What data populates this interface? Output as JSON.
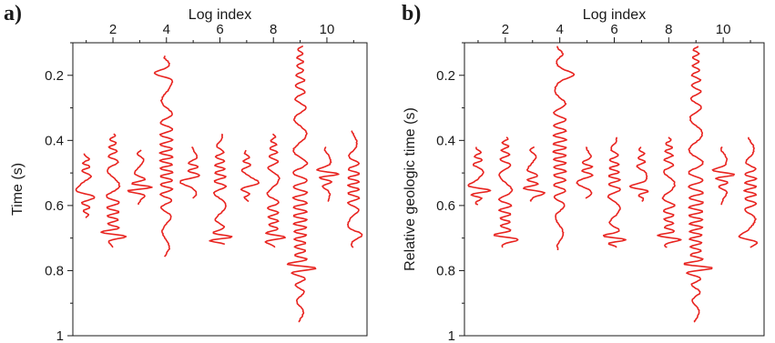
{
  "panels": [
    {
      "letter": "a)",
      "chart_data": {
        "type": "line",
        "xlabel": "Log index",
        "ylabel": "Time (s)",
        "xlim": [
          0.5,
          11.5
        ],
        "ylim": [
          0.1,
          1.0
        ],
        "y_inverted": true,
        "x_ticks": [
          2,
          4,
          6,
          8,
          10
        ],
        "x_minor_ticks": [
          1,
          3,
          5,
          7,
          9,
          11
        ],
        "y_ticks": [
          0.2,
          0.4,
          0.6,
          0.8,
          1
        ],
        "y_tick_labels": [
          "0.2",
          "0.4",
          "0.6",
          "0.8",
          "1"
        ],
        "x_axis_position": "top",
        "grid": false,
        "series_color": "#e8231f",
        "series": [
          {
            "log": 1,
            "start": 0.44,
            "end": 0.64,
            "peak": 0.56,
            "amp": 0.45
          },
          {
            "log": 2,
            "start": 0.38,
            "end": 0.73,
            "peak": 0.69,
            "amp": 0.55
          },
          {
            "log": 3,
            "start": 0.43,
            "end": 0.6,
            "peak": 0.55,
            "amp": 0.45
          },
          {
            "log": 4,
            "start": 0.14,
            "end": 0.76,
            "peak": 0.2,
            "amp": 0.55
          },
          {
            "log": 5,
            "start": 0.42,
            "end": 0.58,
            "peak": 0.53,
            "amp": 0.45
          },
          {
            "log": 6,
            "start": 0.38,
            "end": 0.72,
            "peak": 0.7,
            "amp": 0.5
          },
          {
            "log": 7,
            "start": 0.43,
            "end": 0.59,
            "peak": 0.53,
            "amp": 0.4
          },
          {
            "log": 8,
            "start": 0.38,
            "end": 0.73,
            "peak": 0.7,
            "amp": 0.5
          },
          {
            "log": 9,
            "start": 0.11,
            "end": 0.96,
            "peak": 0.79,
            "amp": 0.6
          },
          {
            "log": 10,
            "start": 0.42,
            "end": 0.59,
            "peak": 0.5,
            "amp": 0.4
          },
          {
            "log": 11,
            "start": 0.37,
            "end": 0.73,
            "peak": 0.68,
            "amp": 0.5
          }
        ]
      }
    },
    {
      "letter": "b)",
      "chart_data": {
        "type": "line",
        "xlabel": "Log index",
        "ylabel": "Relative geologic time (s)",
        "xlim": [
          0.5,
          11.5
        ],
        "ylim": [
          0.1,
          1.0
        ],
        "y_inverted": true,
        "x_ticks": [
          2,
          4,
          6,
          8,
          10
        ],
        "x_minor_ticks": [
          1,
          3,
          5,
          7,
          9,
          11
        ],
        "y_ticks": [
          0.2,
          0.4,
          0.6,
          0.8,
          1
        ],
        "y_tick_labels": [
          "0.2",
          "0.4",
          "0.6",
          "0.8",
          "1"
        ],
        "x_axis_position": "top",
        "grid": false,
        "series_color": "#e8231f",
        "series": [
          {
            "log": 1,
            "start": 0.42,
            "end": 0.6,
            "peak": 0.55,
            "amp": 0.45
          },
          {
            "log": 2,
            "start": 0.39,
            "end": 0.73,
            "peak": 0.7,
            "amp": 0.55
          },
          {
            "log": 3,
            "start": 0.42,
            "end": 0.59,
            "peak": 0.56,
            "amp": 0.45
          },
          {
            "log": 4,
            "start": 0.11,
            "end": 0.74,
            "peak": 0.2,
            "amp": 0.55
          },
          {
            "log": 5,
            "start": 0.42,
            "end": 0.58,
            "peak": 0.54,
            "amp": 0.45
          },
          {
            "log": 6,
            "start": 0.39,
            "end": 0.73,
            "peak": 0.7,
            "amp": 0.5
          },
          {
            "log": 7,
            "start": 0.42,
            "end": 0.59,
            "peak": 0.54,
            "amp": 0.4
          },
          {
            "log": 8,
            "start": 0.39,
            "end": 0.73,
            "peak": 0.7,
            "amp": 0.5
          },
          {
            "log": 9,
            "start": 0.11,
            "end": 0.96,
            "peak": 0.79,
            "amp": 0.6
          },
          {
            "log": 10,
            "start": 0.42,
            "end": 0.6,
            "peak": 0.5,
            "amp": 0.4
          },
          {
            "log": 11,
            "start": 0.39,
            "end": 0.73,
            "peak": 0.7,
            "amp": 0.5
          }
        ]
      }
    }
  ]
}
